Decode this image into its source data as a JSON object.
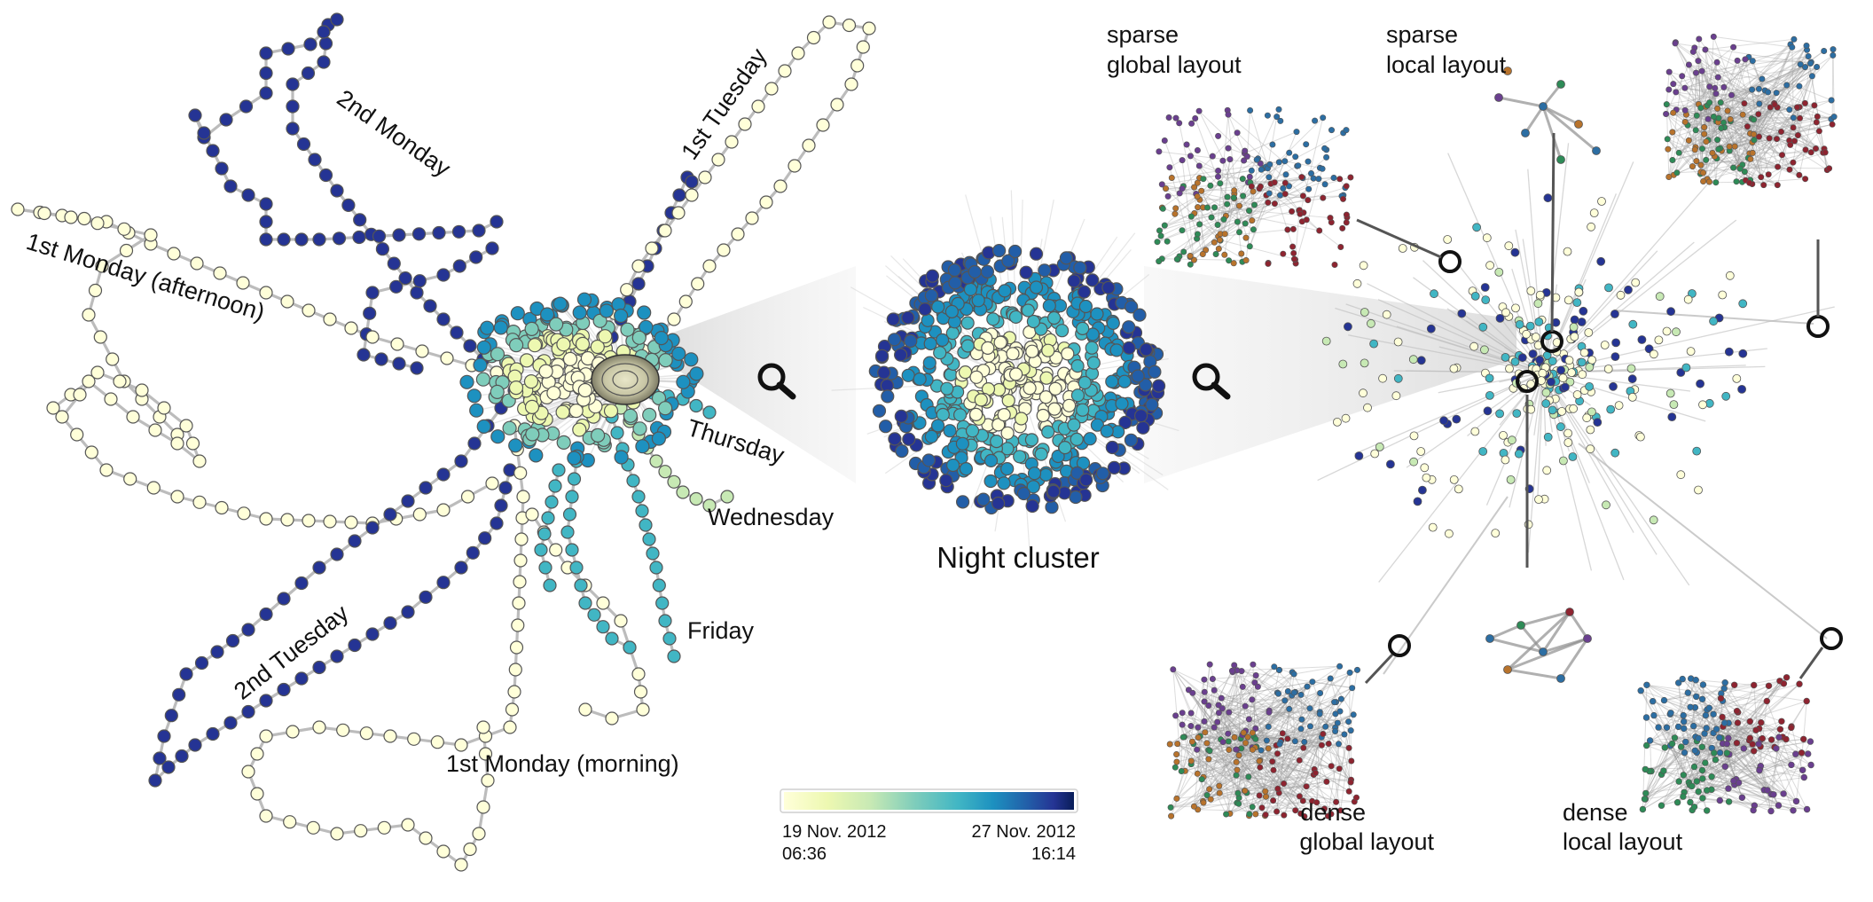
{
  "colors": {
    "scale": [
      "#ffffd9",
      "#edf8b1",
      "#c7e9b4",
      "#7fcdbb",
      "#41b6c4",
      "#1d91c0",
      "#225ea8",
      "#253494",
      "#081d58"
    ],
    "edge": "#b8b8b8",
    "node_stroke": "#555555",
    "cluster_colors": [
      "#2c6ea3",
      "#2e8b57",
      "#8e2430",
      "#b8732c",
      "#6a3f8f",
      "#1f7fa8"
    ]
  },
  "trajectory": {
    "labels": {
      "second_monday": "2nd Monday",
      "first_tuesday": "1st Tuesday",
      "first_monday_afternoon": "1st Monday (afternoon)",
      "thursday": "Thursday",
      "wednesday": "Wednesday",
      "friday": "Friday",
      "second_tuesday": "2nd Tuesday",
      "first_monday_morning": "1st Monday (morning)"
    }
  },
  "night_cluster": {
    "title": "Night cluster",
    "zoom_icon_left": "magnifier-icon",
    "zoom_icon_right": "magnifier-icon"
  },
  "colorbar": {
    "start_date": "19 Nov. 2012",
    "start_time": "06:36",
    "end_date": "27 Nov. 2012",
    "end_time": "16:14"
  },
  "layouts": {
    "sparse_global": {
      "line1": "sparse",
      "line2": "global layout"
    },
    "sparse_local": {
      "line1": "sparse",
      "line2": "local layout"
    },
    "dense_global": {
      "line1": "dense",
      "line2": "global layout"
    },
    "dense_local": {
      "line1": "dense",
      "line2": "local layout"
    }
  }
}
